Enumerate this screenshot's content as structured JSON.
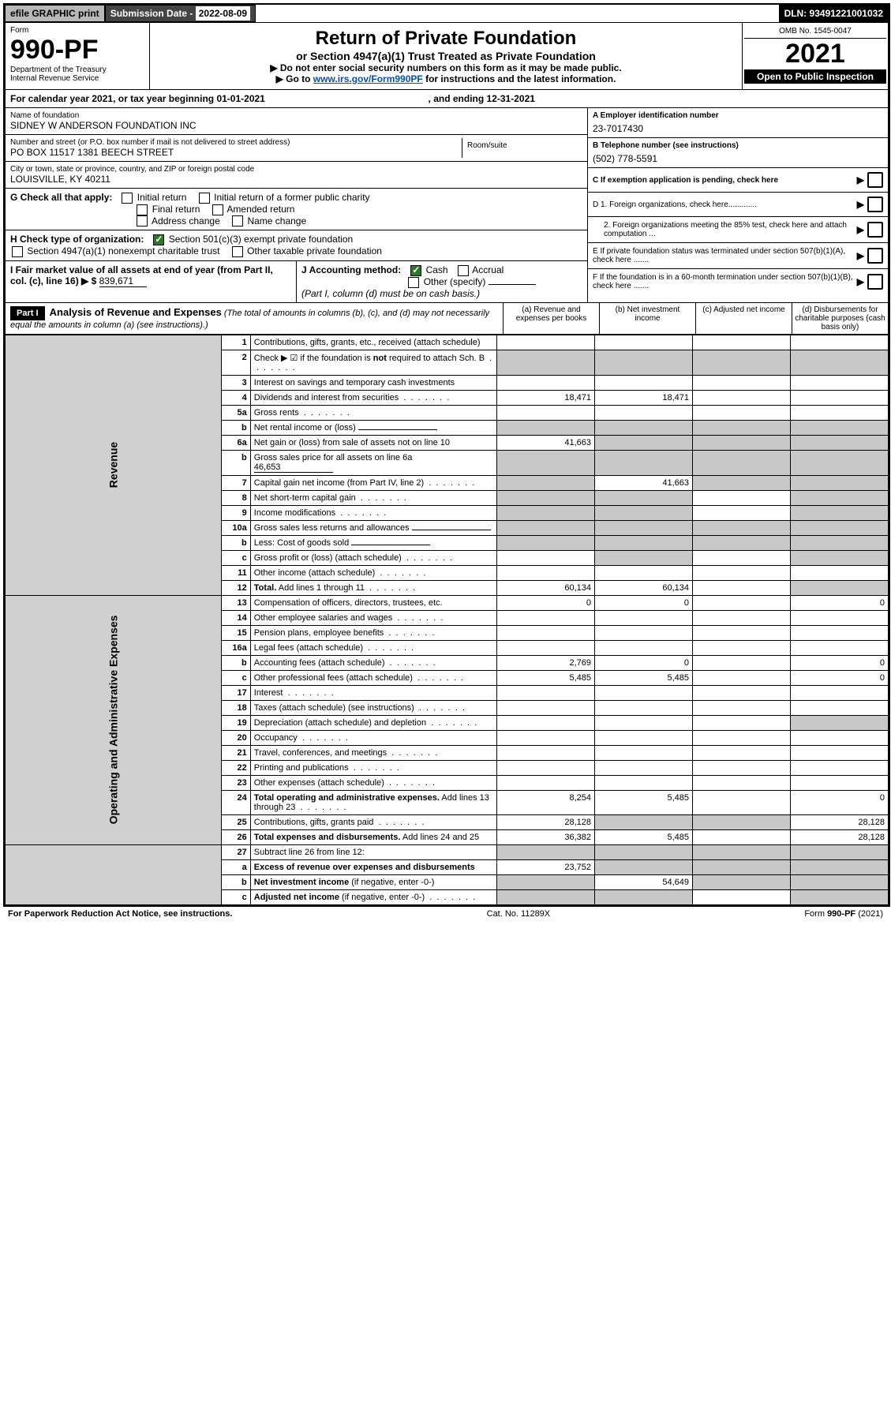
{
  "topbar": {
    "efile": "efile GRAPHIC print",
    "subdate_label": "Submission Date - ",
    "subdate": "2022-08-09",
    "dln": "DLN: 93491221001032"
  },
  "header": {
    "form": "Form",
    "form_no": "990-PF",
    "dept": "Department of the Treasury",
    "irs": "Internal Revenue Service",
    "title": "Return of Private Foundation",
    "subtitle": "or Section 4947(a)(1) Trust Treated as Private Foundation",
    "instr1": "▶ Do not enter social security numbers on this form as it may be made public.",
    "instr2_pre": "▶ Go to ",
    "instr2_link": "www.irs.gov/Form990PF",
    "instr2_post": " for instructions and the latest information.",
    "omb": "OMB No. 1545-0047",
    "year": "2021",
    "open": "Open to Public Inspection"
  },
  "calyear": {
    "text_a": "For calendar year 2021, or tax year beginning ",
    "begin": "01-01-2021",
    "text_b": " , and ending ",
    "end": "12-31-2021"
  },
  "org": {
    "name_label": "Name of foundation",
    "name": "SIDNEY W ANDERSON FOUNDATION INC",
    "addr_label": "Number and street (or P.O. box number if mail is not delivered to street address)",
    "addr": "PO BOX 11517 1381 BEECH STREET",
    "room_label": "Room/suite",
    "city_label": "City or town, state or province, country, and ZIP or foreign postal code",
    "city": "LOUISVILLE, KY  40211",
    "ein_label": "A Employer identification number",
    "ein": "23-7017430",
    "phone_label": "B Telephone number (see instructions)",
    "phone": "(502) 778-5591",
    "c_label": "C If exemption application is pending, check here",
    "d1": "D 1. Foreign organizations, check here.............",
    "d2": "2. Foreign organizations meeting the 85% test, check here and attach computation ...",
    "e": "E  If private foundation status was terminated under section 507(b)(1)(A), check here .......",
    "f": "F  If the foundation is in a 60-month termination under section 507(b)(1)(B), check here .......",
    "g_label": "G Check all that apply:",
    "g_opts": [
      "Initial return",
      "Initial return of a former public charity",
      "Final return",
      "Amended return",
      "Address change",
      "Name change"
    ],
    "h_label": "H Check type of organization:",
    "h1": "Section 501(c)(3) exempt private foundation",
    "h2": "Section 4947(a)(1) nonexempt charitable trust",
    "h3": "Other taxable private foundation",
    "i_label": "I Fair market value of all assets at end of year (from Part II, col. (c), line 16) ▶ $",
    "i_val": "839,671",
    "j_label": "J Accounting method:",
    "j_cash": "Cash",
    "j_accrual": "Accrual",
    "j_other": "Other (specify)",
    "j_note": "(Part I, column (d) must be on cash basis.)"
  },
  "part1": {
    "label": "Part I",
    "title": "Analysis of Revenue and Expenses",
    "note": "(The total of amounts in columns (b), (c), and (d) may not necessarily equal the amounts in column (a) (see instructions).)",
    "col_a": "(a)   Revenue and expenses per books",
    "col_b": "(b)   Net investment income",
    "col_c": "(c)   Adjusted net income",
    "col_d": "(d)  Disbursements for charitable purposes (cash basis only)"
  },
  "sections": {
    "revenue": "Revenue",
    "opex": "Operating and Administrative Expenses"
  },
  "rows": [
    {
      "n": "1",
      "t": "Contributions, gifts, grants, etc., received (attach schedule)",
      "a": "",
      "b": "",
      "c": "",
      "d": "",
      "grey_c": false,
      "grey_d": false
    },
    {
      "n": "2",
      "t": "Check ▶ ☑ if the foundation is <b>not</b> required to attach Sch. B",
      "dots": true,
      "a": "g",
      "b": "g",
      "c": "g",
      "d": "g"
    },
    {
      "n": "3",
      "t": "Interest on savings and temporary cash investments"
    },
    {
      "n": "4",
      "t": "Dividends and interest from securities",
      "dots": true,
      "a": "18,471",
      "b": "18,471"
    },
    {
      "n": "5a",
      "t": "Gross rents",
      "dots": true
    },
    {
      "n": "b",
      "t": "Net rental income or (loss)",
      "uline": true,
      "a": "g",
      "b": "g",
      "c": "g",
      "d": "g"
    },
    {
      "n": "6a",
      "t": "Net gain or (loss) from sale of assets not on line 10",
      "a": "41,663",
      "b": "g",
      "c": "g",
      "d": "g"
    },
    {
      "n": "b",
      "t": "Gross sales price for all assets on line 6a",
      "uline": true,
      "uval": "46,653",
      "a": "g",
      "b": "g",
      "c": "g",
      "d": "g"
    },
    {
      "n": "7",
      "t": "Capital gain net income (from Part IV, line 2)",
      "dots": true,
      "a": "g",
      "b": "41,663",
      "c": "g",
      "d": "g"
    },
    {
      "n": "8",
      "t": "Net short-term capital gain",
      "dots": true,
      "a": "g",
      "b": "g",
      "d": "g"
    },
    {
      "n": "9",
      "t": "Income modifications",
      "dots": true,
      "a": "g",
      "b": "g",
      "d": "g"
    },
    {
      "n": "10a",
      "t": "Gross sales less returns and allowances",
      "uline": true,
      "a": "g",
      "b": "g",
      "c": "g",
      "d": "g"
    },
    {
      "n": "b",
      "t": "Less: Cost of goods sold",
      "dots": true,
      "uline": true,
      "a": "g",
      "b": "g",
      "c": "g",
      "d": "g"
    },
    {
      "n": "c",
      "t": "Gross profit or (loss) (attach schedule)",
      "dots": true,
      "a": "",
      "b": "g",
      "d": "g"
    },
    {
      "n": "11",
      "t": "Other income (attach schedule)",
      "dots": true
    },
    {
      "n": "12",
      "t": "<b>Total.</b> Add lines 1 through 11",
      "dots": true,
      "a": "60,134",
      "b": "60,134",
      "d": "g"
    }
  ],
  "exp_rows": [
    {
      "n": "13",
      "t": "Compensation of officers, directors, trustees, etc.",
      "a": "0",
      "b": "0",
      "d": "0"
    },
    {
      "n": "14",
      "t": "Other employee salaries and wages",
      "dots": true
    },
    {
      "n": "15",
      "t": "Pension plans, employee benefits",
      "dots": true
    },
    {
      "n": "16a",
      "t": "Legal fees (attach schedule)",
      "dots": true
    },
    {
      "n": "b",
      "t": "Accounting fees (attach schedule)",
      "dots": true,
      "a": "2,769",
      "b": "0",
      "d": "0"
    },
    {
      "n": "c",
      "t": "Other professional fees (attach schedule)",
      "dots": true,
      "a": "5,485",
      "b": "5,485",
      "d": "0"
    },
    {
      "n": "17",
      "t": "Interest",
      "dots": true
    },
    {
      "n": "18",
      "t": "Taxes (attach schedule) (see instructions)",
      "dots": true
    },
    {
      "n": "19",
      "t": "Depreciation (attach schedule) and depletion",
      "dots": true,
      "d": "g"
    },
    {
      "n": "20",
      "t": "Occupancy",
      "dots": true
    },
    {
      "n": "21",
      "t": "Travel, conferences, and meetings",
      "dots": true
    },
    {
      "n": "22",
      "t": "Printing and publications",
      "dots": true
    },
    {
      "n": "23",
      "t": "Other expenses (attach schedule)",
      "dots": true
    },
    {
      "n": "24",
      "t": "<b>Total operating and administrative expenses.</b> Add lines 13 through 23",
      "dots": true,
      "a": "8,254",
      "b": "5,485",
      "d": "0"
    },
    {
      "n": "25",
      "t": "Contributions, gifts, grants paid",
      "dots": true,
      "a": "28,128",
      "b": "g",
      "c": "g",
      "d": "28,128"
    },
    {
      "n": "26",
      "t": "<b>Total expenses and disbursements.</b> Add lines 24 and 25",
      "a": "36,382",
      "b": "5,485",
      "d": "28,128"
    }
  ],
  "final_rows": [
    {
      "n": "27",
      "t": "Subtract line 26 from line 12:",
      "a": "g",
      "b": "g",
      "c": "g",
      "d": "g"
    },
    {
      "n": "a",
      "t": "<b>Excess of revenue over expenses and disbursements</b>",
      "a": "23,752",
      "b": "g",
      "c": "g",
      "d": "g"
    },
    {
      "n": "b",
      "t": "<b>Net investment income</b> (if negative, enter -0-)",
      "a": "g",
      "b": "54,649",
      "c": "g",
      "d": "g"
    },
    {
      "n": "c",
      "t": "<b>Adjusted net income</b> (if negative, enter -0-)",
      "dots": true,
      "a": "g",
      "b": "g",
      "d": "g"
    }
  ],
  "footer": {
    "left": "For Paperwork Reduction Act Notice, see instructions.",
    "mid": "Cat. No. 11289X",
    "right": "Form 990-PF (2021)"
  }
}
